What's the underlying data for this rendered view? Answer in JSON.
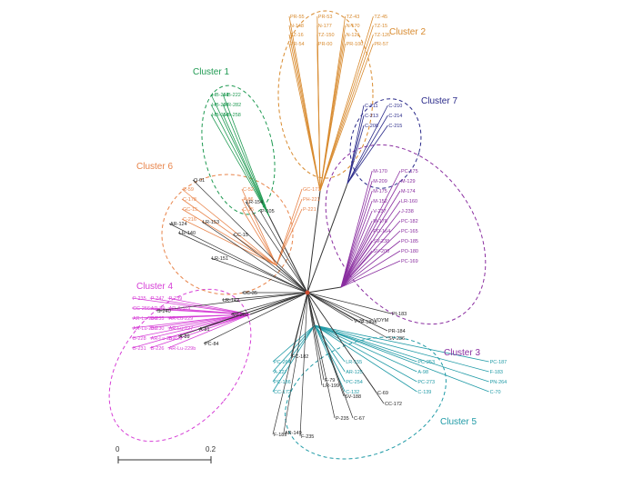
{
  "figure": {
    "scale_bar": {
      "start_label": "0",
      "end_label": "0.2"
    }
  },
  "clusters": [
    {
      "id": "c1",
      "title": "Cluster 1",
      "color": "#1f9a52",
      "leaves": [
        "HB-261",
        "HB-222",
        "HB-207",
        "HR-282",
        "HB-254",
        "HB-258"
      ]
    },
    {
      "id": "c2",
      "title": "Cluster 2",
      "color": "#d88a2e",
      "leaves": [
        "PR-55",
        "PR-53",
        "TZ-43",
        "TZ-45",
        "N-148",
        "N-177",
        "N-170",
        "TZ-15",
        "TZ-16",
        "TZ-150",
        "N-126",
        "TZ-126",
        "PR-54",
        "PR-00",
        "PR-100",
        "PR-57"
      ]
    },
    {
      "id": "c3",
      "title": "Cluster 3",
      "color": "#8a2ea0",
      "leaves": [
        "PC-175",
        "M-170",
        "M-129",
        "M-209",
        "M-174",
        "M-175",
        "LR-160",
        "M-152",
        "J-238",
        "V-237",
        "PC-182",
        "M-178",
        "PC-165",
        "PO-164",
        "PO-185",
        "SV-238",
        "PO-180",
        "SV-200",
        "PC-169"
      ]
    },
    {
      "id": "c4",
      "title": "Cluster 4",
      "color": "#d63fd6",
      "leaves": [
        "P-235",
        "P-247",
        "P-239",
        "CC-256",
        "AR-89",
        "AR-A-119",
        "AR-Lu-230",
        "B-235",
        "AR-Lu-229",
        "AR-Lu-232",
        "B-230",
        "AR-Lu-227",
        "B-228",
        "AR-Lu-233",
        "B-229",
        "B-231",
        "B-226",
        "AR-Lu-229b"
      ]
    },
    {
      "id": "c5",
      "title": "Cluster 5",
      "color": "#1f9aa6",
      "leaves": [
        "PC-264",
        "LR-155",
        "PC-253",
        "PC-187",
        "A-127",
        "AR-125",
        "A-98",
        "F-183",
        "PC-186",
        "PC-254",
        "PC-273",
        "PN-264",
        "CC-172",
        "C-132",
        "C-139",
        "C-70"
      ]
    },
    {
      "id": "c6",
      "title": "Cluster 6",
      "color": "#e8844a",
      "leaves": [
        "C-59",
        "C-52",
        "GC-171",
        "C-178",
        "A-86",
        "PH-221",
        "GC-15",
        "C-15",
        "P-221",
        "C-216"
      ]
    },
    {
      "id": "c7",
      "title": "Cluster 7",
      "color": "#2a2a8a",
      "leaves": [
        "C-211",
        "C-210",
        "C-213",
        "C-214",
        "C-208",
        "C-215"
      ]
    }
  ],
  "black_leaves": [
    "Q-01",
    "LR-154",
    "P-105",
    "LR-153",
    "AR-124",
    "LR-140",
    "CC-15",
    "LR-151",
    "CC-35",
    "LR-142",
    "SV-202",
    "S-240",
    "A-81",
    "A-89",
    "PC-84",
    "FC-182",
    "F-79",
    "LR-199",
    "SV-188",
    "P-235",
    "C-67",
    "C-69",
    "CC-172",
    "AR-149",
    "F-189",
    "F-235",
    "F-189b",
    "V-23",
    "VOYM",
    "PR-184",
    "SV-236",
    "PI-183"
  ],
  "colors": {
    "branch_default": "#333333",
    "root_marker": "#cc4b30"
  }
}
